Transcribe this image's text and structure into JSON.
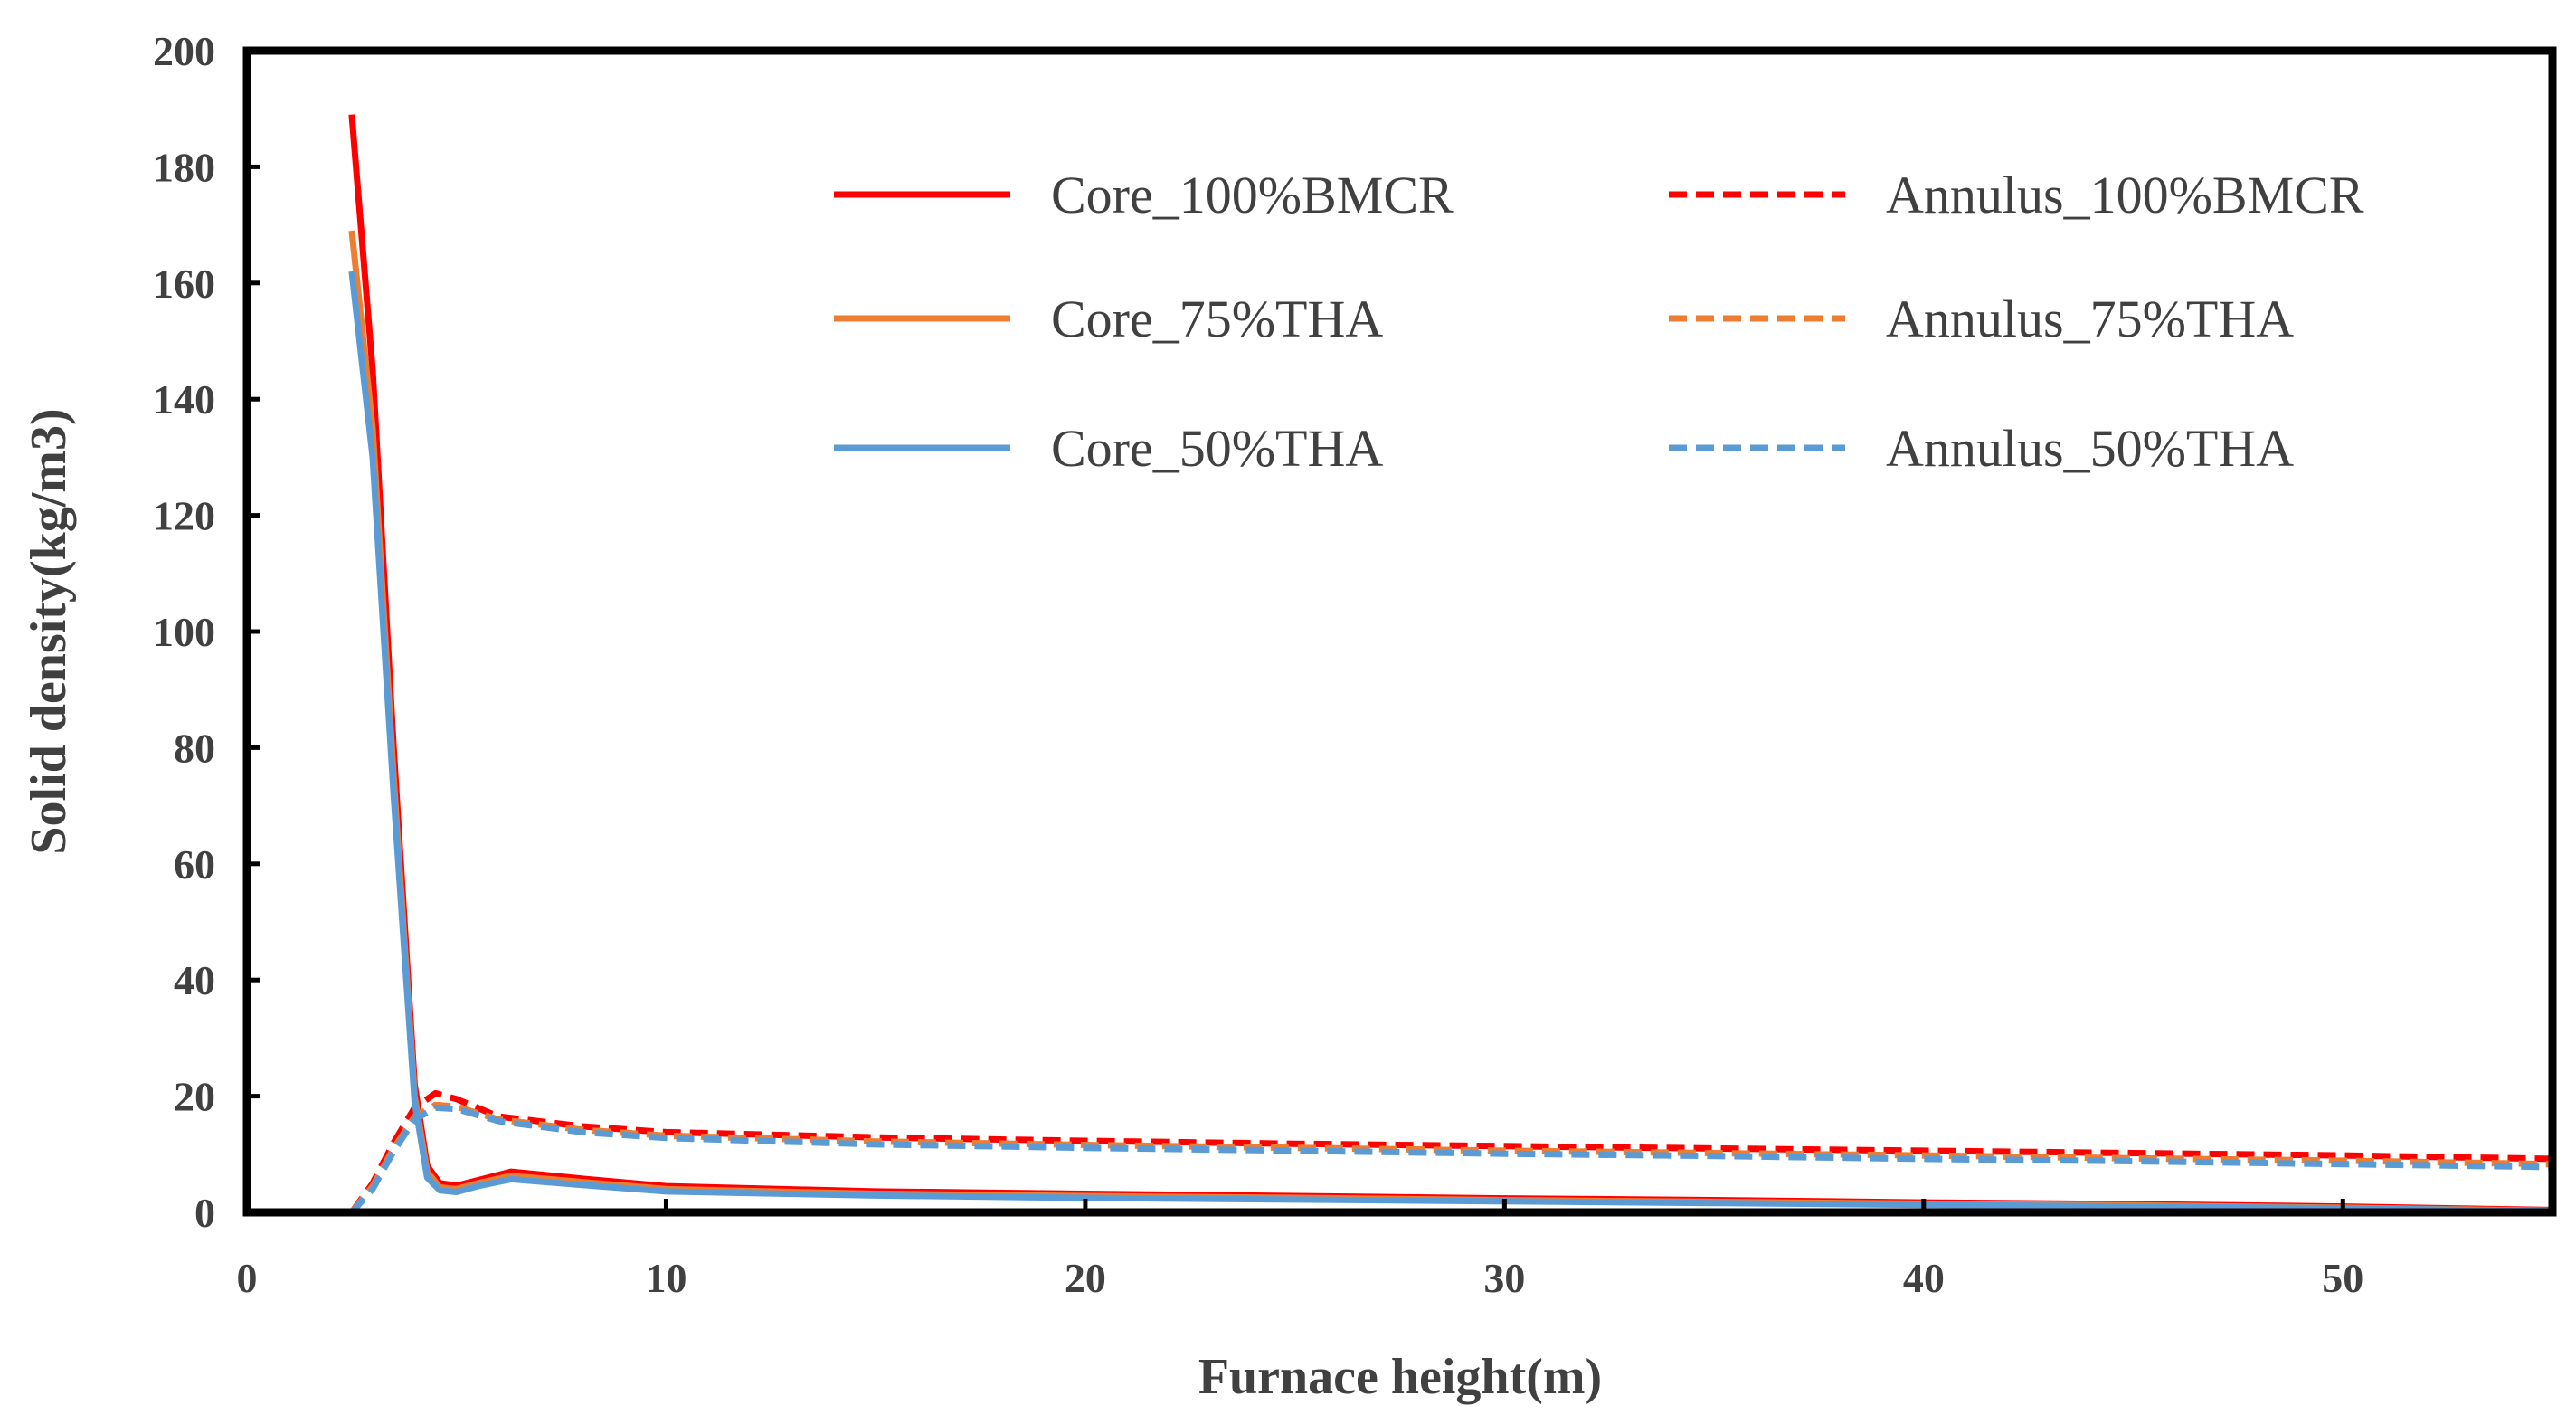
{
  "chart_data": {
    "type": "line",
    "title": "",
    "xlabel": "Furnace height(m)",
    "ylabel": "Solid density(kg/m3)",
    "xlim": [
      0,
      55
    ],
    "ylim": [
      0,
      200
    ],
    "xticks": [
      0,
      10,
      20,
      30,
      40,
      50
    ],
    "yticks": [
      0,
      20,
      40,
      60,
      80,
      100,
      120,
      140,
      160,
      180,
      200
    ],
    "grid": false,
    "legend_position": "top-right",
    "series": [
      {
        "name": "Core_100%BMCR",
        "color": "#ff0000",
        "dash": "solid",
        "x": [
          2.5,
          3.0,
          3.5,
          4.0,
          4.3,
          4.6,
          5.0,
          5.5,
          6.3,
          8,
          10,
          15,
          20,
          25,
          30,
          35,
          40,
          45,
          50,
          55
        ],
        "y": [
          189,
          145,
          80,
          22,
          8,
          5,
          4.6,
          5.5,
          7,
          5.8,
          4.5,
          3.6,
          3.2,
          2.8,
          2.4,
          2.1,
          1.7,
          1.4,
          1.0,
          0.4
        ]
      },
      {
        "name": "Annulus_100%BMCR",
        "color": "#ff0000",
        "dash": "dashed",
        "x": [
          2.5,
          3.0,
          3.5,
          4.0,
          4.5,
          5.0,
          6.0,
          8,
          10,
          15,
          20,
          25,
          30,
          35,
          40,
          45,
          50,
          55
        ],
        "y": [
          0,
          5,
          12,
          18,
          20.5,
          19.5,
          16.5,
          14.8,
          13.8,
          12.9,
          12.3,
          11.8,
          11.4,
          11.0,
          10.6,
          10.2,
          9.8,
          9.2
        ]
      },
      {
        "name": "Core_75%THA",
        "color": "#ed7d31",
        "dash": "solid",
        "x": [
          2.5,
          3.0,
          3.5,
          4.0,
          4.3,
          4.6,
          5.0,
          5.5,
          6.3,
          8,
          10,
          15,
          20,
          25,
          30,
          35,
          40,
          45,
          50,
          55
        ],
        "y": [
          169,
          135,
          75,
          20,
          7,
          4.3,
          4,
          5,
          6.3,
          5.2,
          4.0,
          3.2,
          2.8,
          2.5,
          2.1,
          1.8,
          1.5,
          1.2,
          0.8,
          0.3
        ]
      },
      {
        "name": "Annulus_75%THA",
        "color": "#ed7d31",
        "dash": "dashed",
        "x": [
          2.5,
          3.0,
          3.5,
          4.0,
          4.5,
          5.0,
          6.0,
          8,
          10,
          15,
          20,
          25,
          30,
          35,
          40,
          45,
          50,
          55
        ],
        "y": [
          0,
          4.5,
          11,
          16.5,
          18.5,
          18.2,
          16,
          14.2,
          13.2,
          12.2,
          11.6,
          11.1,
          10.6,
          10.2,
          9.8,
          9.3,
          8.9,
          8.3
        ]
      },
      {
        "name": "Core_50%THA",
        "color": "#5b9bd5",
        "dash": "solid",
        "x": [
          2.5,
          3.0,
          3.5,
          4.0,
          4.3,
          4.6,
          5.0,
          5.5,
          6.3,
          8,
          10,
          15,
          20,
          25,
          30,
          35,
          40,
          45,
          50,
          55
        ],
        "y": [
          162,
          130,
          72,
          19,
          6,
          3.8,
          3.5,
          4.5,
          5.7,
          4.7,
          3.6,
          2.9,
          2.5,
          2.2,
          1.9,
          1.6,
          1.3,
          1.0,
          0.7,
          0.2
        ]
      },
      {
        "name": "Annulus_50%THA",
        "color": "#5b9bd5",
        "dash": "dashed",
        "x": [
          2.5,
          3.0,
          3.5,
          4.0,
          4.5,
          5.0,
          6.0,
          8,
          10,
          15,
          20,
          25,
          30,
          35,
          40,
          45,
          50,
          55
        ],
        "y": [
          0,
          4,
          10.5,
          16,
          18,
          17.8,
          15.7,
          13.8,
          12.8,
          11.7,
          11.1,
          10.6,
          10.1,
          9.7,
          9.2,
          8.8,
          8.3,
          7.8
        ]
      }
    ]
  }
}
